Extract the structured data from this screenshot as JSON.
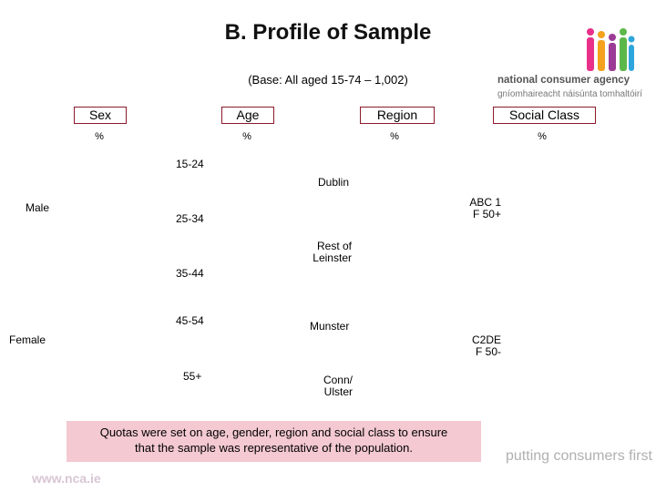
{
  "title": "B. Profile of Sample",
  "base": "(Base: All aged 15-74 – 1,002)",
  "headers": {
    "sex": "Sex",
    "age": "Age",
    "region": "Region",
    "social_class": "Social Class"
  },
  "percent_symbol": "%",
  "sex_labels": {
    "male": "Male",
    "female": "Female"
  },
  "age_labels": {
    "a1524": "15-24",
    "a2534": "25-34",
    "a3544": "35-44",
    "a4554": "45-54",
    "a55": "55+"
  },
  "region_labels": {
    "dublin": "Dublin",
    "rest_line1": "Rest of",
    "rest_line2": "Leinster",
    "munster": "Munster",
    "conn_line1": "Conn/",
    "conn_line2": "Ulster"
  },
  "social_labels": {
    "abc1_line1": "ABC 1",
    "abc1_line2": "F 50+",
    "c2de_line1": "C2DE",
    "c2de_line2": "F 50-"
  },
  "quota_line1": "Quotas were set on age, gender, region and social class to ensure",
  "quota_line2": "that the sample was representative of the population.",
  "logo": {
    "line1": "national consumer agency",
    "line2": "gníomhaireacht náisúnta tomhaltóirí",
    "colors": [
      "#e8308a",
      "#f4a21d",
      "#9b3b96",
      "#5cb84a",
      "#2ea6dd"
    ]
  },
  "tagline": "putting consumers first",
  "url": "www.nca.ie",
  "colors": {
    "header_border": "#8b1a2b",
    "quota_bg": "#f4c9d2"
  }
}
